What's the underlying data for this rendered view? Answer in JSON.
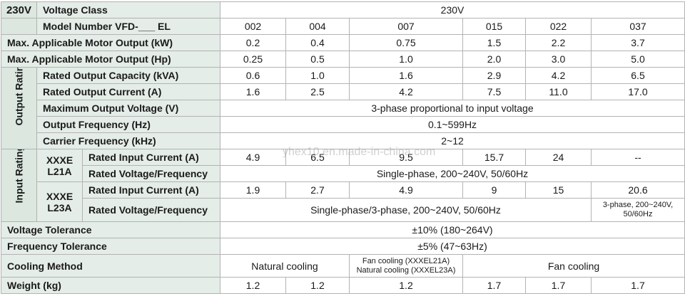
{
  "corner_label": "230V",
  "section_labels": {
    "output": "Output Rating",
    "input": "Input Rating"
  },
  "sub_labels": {
    "l21a": [
      "XXXE",
      "L21A"
    ],
    "l23a": [
      "XXXE",
      "L23A"
    ]
  },
  "rows": {
    "voltage_class": {
      "label": "Voltage Class",
      "value": "230V"
    },
    "model_number": {
      "label": "Model Number VFD-___ EL",
      "values": [
        "002",
        "004",
        "007",
        "015",
        "022",
        "037"
      ]
    },
    "motor_kw": {
      "label": "Max. Applicable Motor Output (kW)",
      "values": [
        "0.2",
        "0.4",
        "0.75",
        "1.5",
        "2.2",
        "3.7"
      ]
    },
    "motor_hp": {
      "label": "Max. Applicable Motor Output (Hp)",
      "values": [
        "0.25",
        "0.5",
        "1.0",
        "2.0",
        "3.0",
        "5.0"
      ]
    },
    "rated_capacity": {
      "label": "Rated Output Capacity (kVA)",
      "values": [
        "0.6",
        "1.0",
        "1.6",
        "2.9",
        "4.2",
        "6.5"
      ]
    },
    "rated_current": {
      "label": "Rated Output Current (A)",
      "values": [
        "1.6",
        "2.5",
        "4.2",
        "7.5",
        "11.0",
        "17.0"
      ]
    },
    "max_voltage": {
      "label": "Maximum Output Voltage (V)",
      "value": "3-phase proportional to input voltage"
    },
    "output_freq": {
      "label": "Output Frequency (Hz)",
      "value": "0.1~599Hz"
    },
    "carrier_freq": {
      "label": "Carrier Frequency (kHz)",
      "value": "2~12"
    },
    "l21a_current": {
      "label": "Rated Input Current (A)",
      "values": [
        "4.9",
        "6.5",
        "9.5",
        "15.7",
        "24",
        "--"
      ]
    },
    "l21a_vf": {
      "label": "Rated Voltage/Frequency",
      "value": "Single-phase, 200~240V, 50/60Hz"
    },
    "l23a_current": {
      "label": "Rated Input Current (A)",
      "values": [
        "1.9",
        "2.7",
        "4.9",
        "9",
        "15",
        "20.6"
      ]
    },
    "l23a_vf": {
      "label": "Rated Voltage/Frequency",
      "value": "Single-phase/3-phase, 200~240V, 50/60Hz",
      "value_last": [
        "3-phase, 200~240V,",
        "50/60Hz"
      ]
    },
    "voltage_tol": {
      "label": "Voltage Tolerance",
      "value": "±10% (180~264V)"
    },
    "freq_tol": {
      "label": "Frequency Tolerance",
      "value": "±5% (47~63Hz)"
    },
    "cooling": {
      "label": "Cooling Method",
      "natural": "Natural cooling",
      "mixed": [
        "Fan cooling (XXXEL21A)",
        "Natural cooling (XXXEL23A)"
      ],
      "fan": "Fan cooling"
    },
    "weight": {
      "label": "Weight (kg)",
      "values": [
        "1.2",
        "1.2",
        "1.2",
        "1.7",
        "1.7",
        "1.7"
      ]
    }
  },
  "watermark": "yhex10.en.made-in-china.com"
}
